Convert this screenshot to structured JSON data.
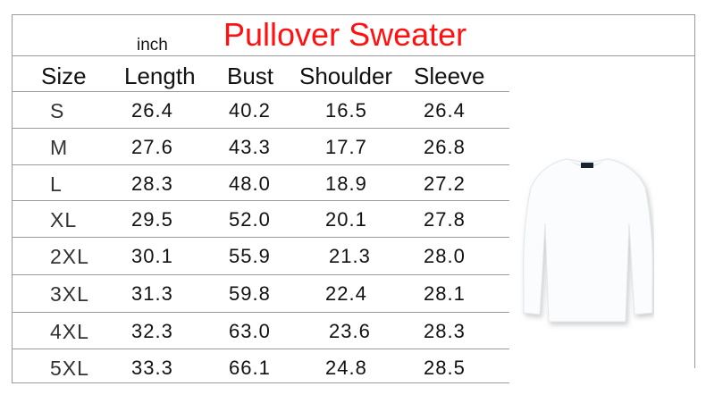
{
  "title": "Pullover Sweater",
  "unit": "inch",
  "title_color": "#ff1111",
  "headers": [
    "Size",
    "Length",
    "Bust",
    "Shoulder",
    "Sleeve"
  ],
  "rows": [
    [
      "S",
      "26.4",
      "40.2",
      "16.5",
      "26.4"
    ],
    [
      "M",
      "27.6",
      "43.3",
      "17.7",
      "26.8"
    ],
    [
      "L",
      "28.3",
      "48.0",
      "18.9",
      "27.2"
    ],
    [
      "XL",
      "29.5",
      "52.0",
      "20.1",
      "27.8"
    ],
    [
      "2XL",
      "30.1",
      "55.9",
      "21.3",
      "28.0"
    ],
    [
      "3XL",
      "31.3",
      "59.8",
      "22.4",
      "28.1"
    ],
    [
      "4XL",
      "32.3",
      "63.0",
      "23.6",
      "28.3"
    ],
    [
      "5XL",
      "33.3",
      "66.1",
      "24.8",
      "28.5"
    ]
  ],
  "image": "white-crewneck-sweater"
}
